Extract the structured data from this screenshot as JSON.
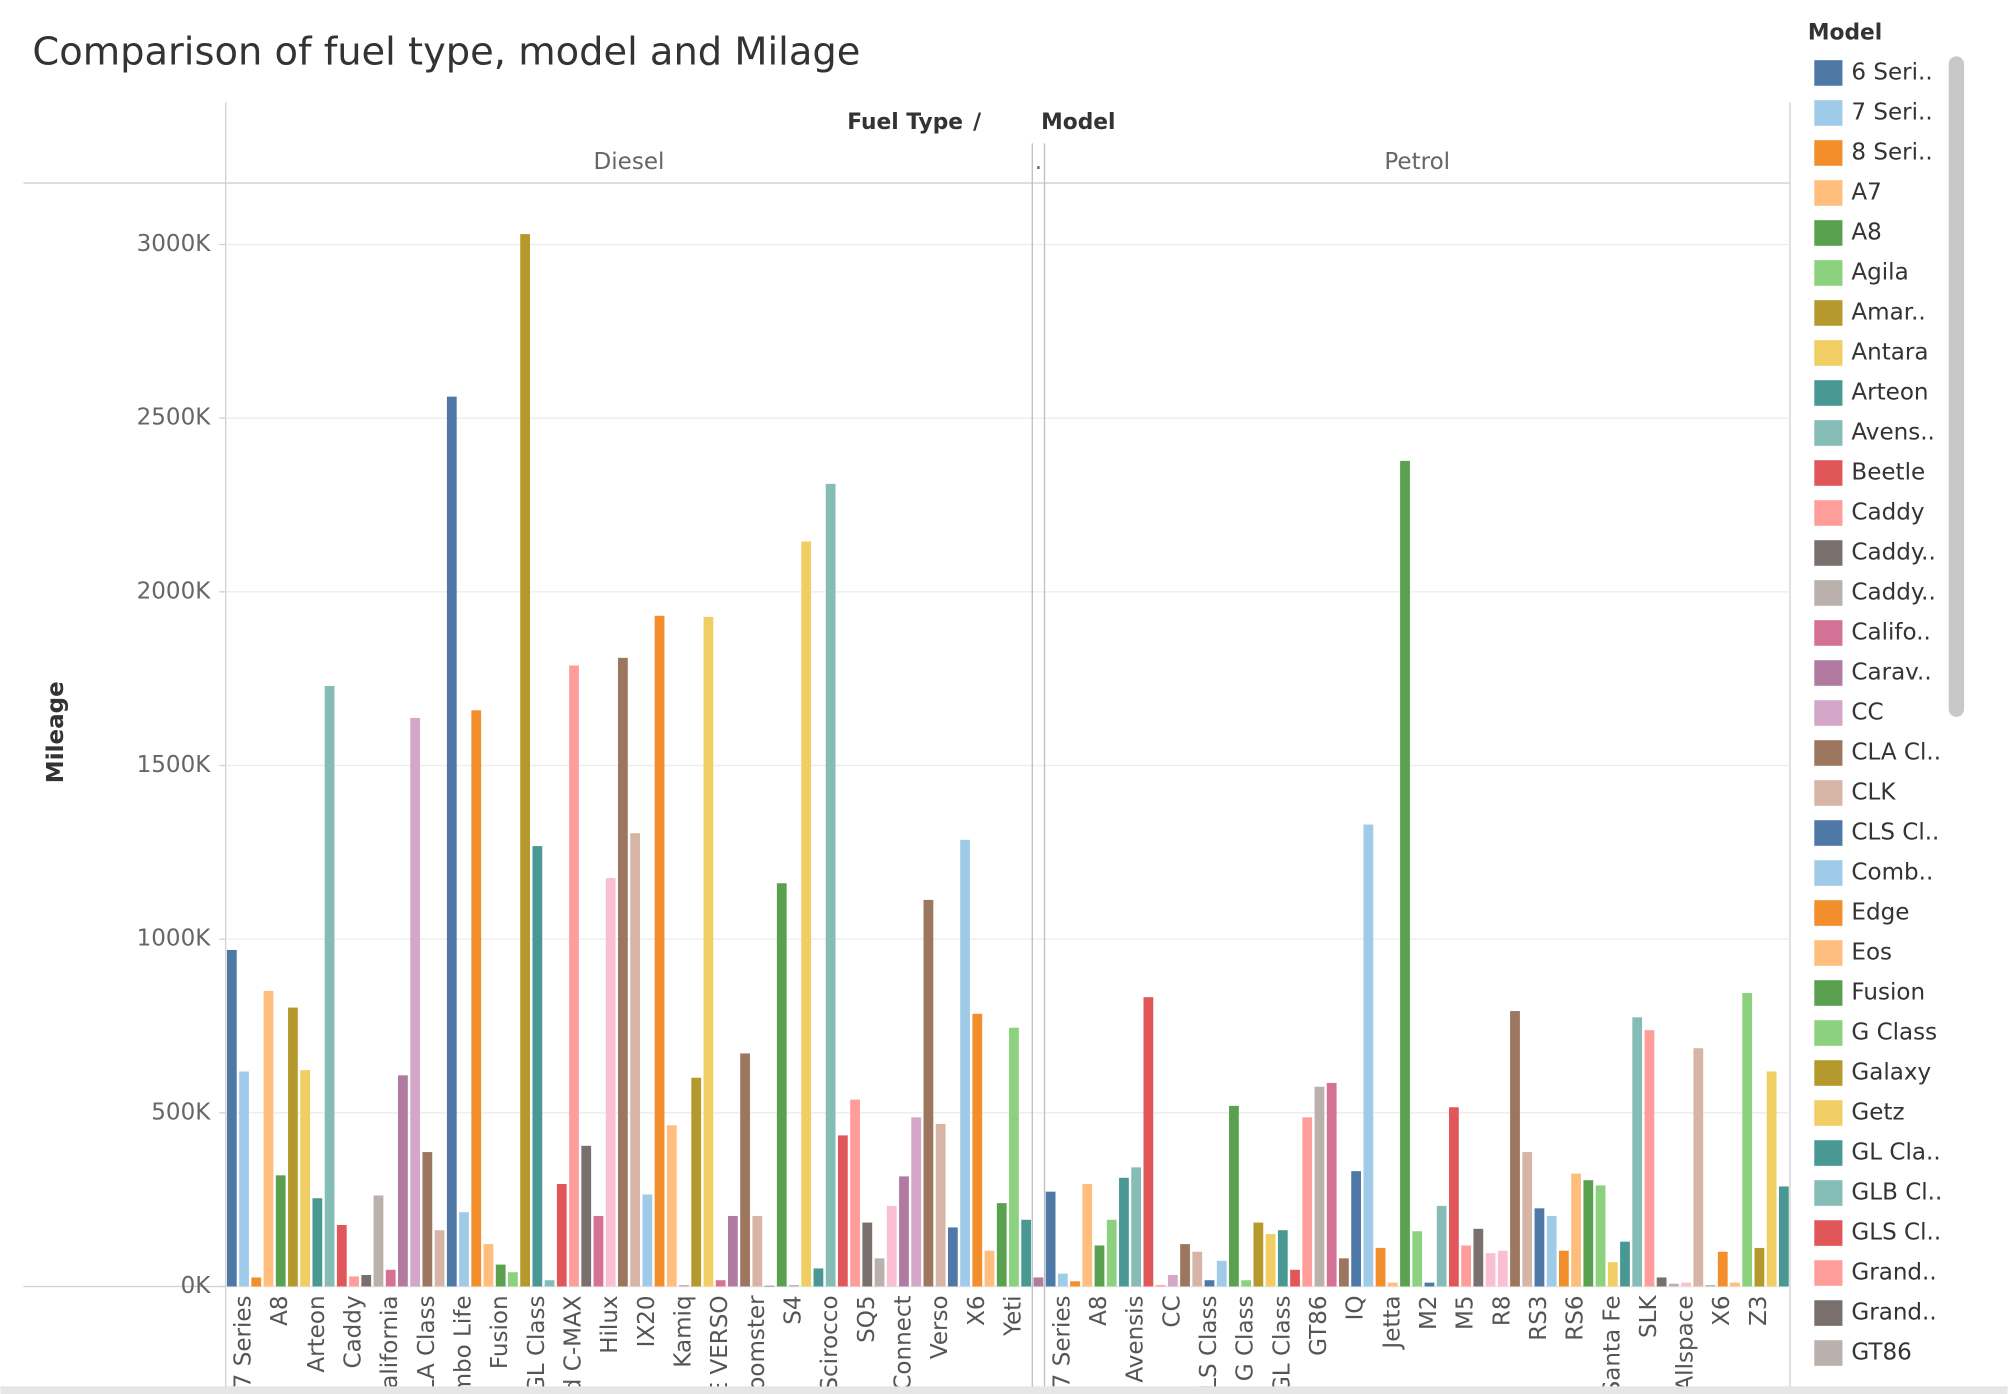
{
  "chart_data": {
    "type": "bar",
    "title": "Comparison of fuel type, model and Milage",
    "column_header": [
      "Fuel Type",
      "/",
      "Model"
    ],
    "y_label": "Mileage",
    "ylim": [
      0,
      3177000
    ],
    "yticks": [
      {
        "value": 0,
        "label": "0K"
      },
      {
        "value": 500000,
        "label": "500K"
      },
      {
        "value": 1000000,
        "label": "1000K"
      },
      {
        "value": 1500000,
        "label": "1500K"
      },
      {
        "value": 2000000,
        "label": "2000K"
      },
      {
        "value": 2500000,
        "label": "2500K"
      },
      {
        "value": 3000000,
        "label": "3000K"
      }
    ],
    "grid": true,
    "panes": [
      {
        "name": "Diesel",
        "categories": [
          null,
          "7 Series",
          null,
          null,
          "A8",
          null,
          null,
          "Arteon",
          null,
          null,
          "Caddy",
          null,
          null,
          "alifornia",
          null,
          null,
          "LA Class",
          null,
          null,
          "mbo Life",
          null,
          null,
          "Fusion",
          null,
          null,
          "GL Class",
          null,
          null,
          "d C-MAX",
          null,
          null,
          "Hilux",
          null,
          null,
          "IX20",
          null,
          null,
          "Kamiq",
          null,
          null,
          "E VERSO",
          null,
          null,
          "oomster",
          null,
          null,
          "S4",
          null,
          null,
          "Scirocco",
          null,
          null,
          "SQ5",
          null,
          null,
          "Connect",
          null,
          null,
          "Verso",
          null,
          null,
          "X6",
          null,
          null,
          "Yeti",
          null
        ],
        "values": [
          969000,
          619000,
          26000,
          851000,
          320000,
          803000,
          623000,
          254000,
          1729000,
          177000,
          29000,
          33000,
          262000,
          48000,
          608000,
          1637000,
          387000,
          162000,
          2562000,
          214000,
          1659000,
          122000,
          63000,
          41000,
          3030000,
          1268000,
          18000,
          295000,
          1788000,
          405000,
          203000,
          1176000,
          1810000,
          1305000,
          265000,
          1931000,
          464000,
          4000,
          601000,
          1928000,
          18000,
          203000,
          671000,
          203000,
          2000,
          1161000,
          4000,
          2145000,
          52000,
          2311000,
          435000,
          538000,
          184000,
          81000,
          232000,
          317000,
          487000,
          1113000,
          468000,
          170000,
          1286000,
          785000,
          103000,
          240000,
          745000,
          192000
        ],
        "colors": [
          "#4e79a7",
          "#a0cbe8",
          "#f28e2b",
          "#ffbe7d",
          "#59a14f",
          "#b6992d",
          "#f1ce63",
          "#499894",
          "#86bcb6",
          "#e15759",
          "#ff9d9a",
          "#79706e",
          "#bab0ac",
          "#d37295",
          "#b07aa1",
          "#d4a6c8",
          "#9d7660",
          "#d7b5a6",
          "#4e79a7",
          "#a0cbe8",
          "#f28e2b",
          "#ffbe7d",
          "#59a14f",
          "#8cd17d",
          "#b6992d",
          "#499894",
          "#86bcb6",
          "#e15759",
          "#ff9d9a",
          "#79706e",
          "#d37295",
          "#fabfd2",
          "#9d7660",
          "#d7b5a6",
          "#a0cbe8",
          "#f28e2b",
          "#ffbe7d",
          "#bab0ac",
          "#b6992d",
          "#f1ce63",
          "#d37295",
          "#b07aa1",
          "#9d7660",
          "#d7b5a6",
          "#79706e",
          "#59a14f",
          "#bab0ac",
          "#f1ce63",
          "#499894",
          "#86bcb6",
          "#e15759",
          "#ff9d9a",
          "#79706e",
          "#bab0ac",
          "#fabfd2",
          "#b07aa1",
          "#d4a6c8",
          "#9d7660",
          "#d7b5a6",
          "#4e79a7",
          "#a0cbe8",
          "#f28e2b",
          "#ffbe7d",
          "#59a14f",
          "#8cd17d",
          "#499894"
        ]
      },
      {
        "name": ".",
        "categories": [
          null
        ],
        "values": [
          26000
        ],
        "colors": [
          "#b07aa1"
        ]
      },
      {
        "name": "Petrol",
        "categories": [
          null,
          "7 Series",
          null,
          null,
          "A8",
          null,
          null,
          "Avensis",
          null,
          null,
          "CC",
          null,
          null,
          "LS Class",
          null,
          null,
          "G Class",
          null,
          null,
          "GL Class",
          null,
          null,
          "GT86",
          null,
          null,
          "IQ",
          null,
          null,
          "Jetta",
          null,
          null,
          "M2",
          null,
          null,
          "M5",
          null,
          null,
          "R8",
          null,
          null,
          "RS3",
          null,
          null,
          "RS6",
          null,
          null,
          "Santa Fe",
          null,
          null,
          "SLK",
          null,
          null,
          "Allspace",
          null,
          null,
          "X6",
          null,
          null,
          "Z3",
          null,
          null
        ],
        "values": [
          273000,
          37000,
          15000,
          295000,
          118000,
          192000,
          313000,
          343000,
          833000,
          4000,
          33000,
          122000,
          100000,
          18000,
          74000,
          520000,
          18000,
          184000,
          151000,
          162000,
          48000,
          487000,
          575000,
          586000,
          81000,
          332000,
          1330000,
          111000,
          11000,
          2377000,
          159000,
          11000,
          232000,
          516000,
          118000,
          166000,
          96000,
          103000,
          793000,
          387000,
          225000,
          203000,
          103000,
          325000,
          306000,
          291000,
          70000,
          129000,
          775000,
          738000,
          26000,
          8000,
          11000,
          686000,
          4000,
          100000,
          11000,
          845000,
          111000,
          619000,
          288000
        ],
        "colors": [
          "#4e79a7",
          "#a0cbe8",
          "#f28e2b",
          "#ffbe7d",
          "#59a14f",
          "#8cd17d",
          "#499894",
          "#86bcb6",
          "#e15759",
          "#ff9d9a",
          "#d4a6c8",
          "#9d7660",
          "#d7b5a6",
          "#4e79a7",
          "#a0cbe8",
          "#59a14f",
          "#8cd17d",
          "#b6992d",
          "#f1ce63",
          "#499894",
          "#e15759",
          "#ff9d9a",
          "#bab0ac",
          "#d37295",
          "#9d7660",
          "#4e79a7",
          "#a0cbe8",
          "#f28e2b",
          "#ffbe7d",
          "#59a14f",
          "#8cd17d",
          "#4e79a7",
          "#86bcb6",
          "#e15759",
          "#ff9d9a",
          "#79706e",
          "#fabfd2",
          "#fabfd2",
          "#9d7660",
          "#d7b5a6",
          "#4e79a7",
          "#a0cbe8",
          "#f28e2b",
          "#ffbe7d",
          "#59a14f",
          "#8cd17d",
          "#f1ce63",
          "#499894",
          "#86bcb6",
          "#ff9d9a",
          "#79706e",
          "#bab0ac",
          "#fabfd2",
          "#d7b5a6",
          "#bab0ac",
          "#f28e2b",
          "#ffbe7d",
          "#8cd17d",
          "#b6992d",
          "#f1ce63",
          "#499894"
        ]
      }
    ],
    "legend": {
      "title": "Model",
      "items": [
        {
          "label": "6 Seri..",
          "color": "#4e79a7"
        },
        {
          "label": "7 Seri..",
          "color": "#a0cbe8"
        },
        {
          "label": "8 Seri..",
          "color": "#f28e2b"
        },
        {
          "label": "A7",
          "color": "#ffbe7d"
        },
        {
          "label": "A8",
          "color": "#59a14f"
        },
        {
          "label": "Agila",
          "color": "#8cd17d"
        },
        {
          "label": "Amar..",
          "color": "#b6992d"
        },
        {
          "label": "Antara",
          "color": "#f1ce63"
        },
        {
          "label": "Arteon",
          "color": "#499894"
        },
        {
          "label": "Avens..",
          "color": "#86bcb6"
        },
        {
          "label": "Beetle",
          "color": "#e15759"
        },
        {
          "label": "Caddy",
          "color": "#ff9d9a"
        },
        {
          "label": "Caddy..",
          "color": "#79706e"
        },
        {
          "label": "Caddy..",
          "color": "#bab0ac"
        },
        {
          "label": "Califo..",
          "color": "#d37295"
        },
        {
          "label": "Carav..",
          "color": "#b07aa1"
        },
        {
          "label": "CC",
          "color": "#d4a6c8"
        },
        {
          "label": "CLA Cl..",
          "color": "#9d7660"
        },
        {
          "label": "CLK",
          "color": "#d7b5a6"
        },
        {
          "label": "CLS Cl..",
          "color": "#4e79a7"
        },
        {
          "label": "Comb..",
          "color": "#a0cbe8"
        },
        {
          "label": "Edge",
          "color": "#f28e2b"
        },
        {
          "label": "Eos",
          "color": "#ffbe7d"
        },
        {
          "label": "Fusion",
          "color": "#59a14f"
        },
        {
          "label": "G Class",
          "color": "#8cd17d"
        },
        {
          "label": "Galaxy",
          "color": "#b6992d"
        },
        {
          "label": "Getz",
          "color": "#f1ce63"
        },
        {
          "label": "GL Cla..",
          "color": "#499894"
        },
        {
          "label": "GLB Cl..",
          "color": "#86bcb6"
        },
        {
          "label": "GLS Cl..",
          "color": "#e15759"
        },
        {
          "label": "Grand..",
          "color": "#ff9d9a"
        },
        {
          "label": "Grand..",
          "color": "#79706e"
        },
        {
          "label": "GT86",
          "color": "#bab0ac"
        }
      ]
    }
  }
}
